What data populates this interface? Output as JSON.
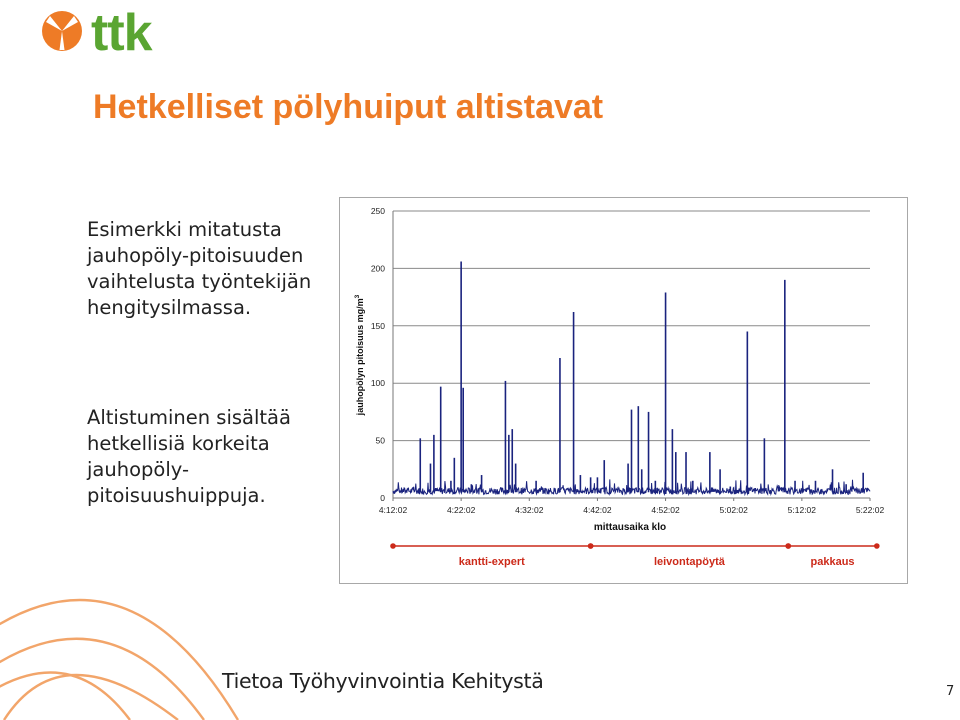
{
  "logo": {
    "text": "ttk",
    "mark_color": "#ee7b26",
    "text_color": "#5aa532"
  },
  "slide": {
    "title": "Hetkelliset pölyhuiput altistavat",
    "paragraph1": "Esimerkki mitatusta jauhopöly-pitoisuuden vaihtelusta työntekijän hengitysilmassa.",
    "paragraph2": "Altistuminen sisältää hetkellisiä korkeita jauhopöly-pitoisuushuippuja.",
    "footer": "Tietoa Työhyvinvointia Kehitystä",
    "page_number": "7"
  },
  "colors": {
    "title": "#ee7b26",
    "series": "#1a237e",
    "phase": "#cc2a1a",
    "deco": "#f2a56a"
  },
  "chart_data": {
    "type": "line",
    "xlabel": "mittausaika klo",
    "ylabel": "jauhopölyn pitoisuus mg/m",
    "ylabel_superscript": "3",
    "ylim": [
      0,
      250
    ],
    "yticks": [
      "0",
      "50",
      "100",
      "150",
      "200",
      "250"
    ],
    "xlim_minutes": [
      0,
      70
    ],
    "xtick_labels": [
      "4:12:02",
      "4:22:02",
      "4:32:02",
      "4:42:02",
      "4:52:02",
      "5:02:02",
      "5:12:02",
      "5:22:02"
    ],
    "grid": "horizontal",
    "baseline_mg_m3": 5,
    "peaks": [
      {
        "t": "4:16:02",
        "value": 52
      },
      {
        "t": "4:17:32",
        "value": 30
      },
      {
        "t": "4:18:02",
        "value": 55
      },
      {
        "t": "4:19:02",
        "value": 97
      },
      {
        "t": "4:20:32",
        "value": 15
      },
      {
        "t": "4:21:02",
        "value": 35
      },
      {
        "t": "4:22:02",
        "value": 206
      },
      {
        "t": "4:22:20",
        "value": 96
      },
      {
        "t": "4:23:32",
        "value": 12
      },
      {
        "t": "4:25:02",
        "value": 20
      },
      {
        "t": "4:28:32",
        "value": 102
      },
      {
        "t": "4:29:02",
        "value": 55
      },
      {
        "t": "4:29:32",
        "value": 60
      },
      {
        "t": "4:30:02",
        "value": 30
      },
      {
        "t": "4:33:02",
        "value": 15
      },
      {
        "t": "4:36:32",
        "value": 122
      },
      {
        "t": "4:38:32",
        "value": 162
      },
      {
        "t": "4:39:32",
        "value": 20
      },
      {
        "t": "4:41:02",
        "value": 18
      },
      {
        "t": "4:42:02",
        "value": 18
      },
      {
        "t": "4:43:02",
        "value": 33
      },
      {
        "t": "4:46:32",
        "value": 30
      },
      {
        "t": "4:47:02",
        "value": 77
      },
      {
        "t": "4:48:02",
        "value": 80
      },
      {
        "t": "4:48:32",
        "value": 25
      },
      {
        "t": "4:49:32",
        "value": 75
      },
      {
        "t": "4:50:32",
        "value": 15
      },
      {
        "t": "4:52:02",
        "value": 179
      },
      {
        "t": "4:53:02",
        "value": 60
      },
      {
        "t": "4:53:32",
        "value": 40
      },
      {
        "t": "4:55:02",
        "value": 40
      },
      {
        "t": "4:56:02",
        "value": 15
      },
      {
        "t": "4:58:32",
        "value": 40
      },
      {
        "t": "5:00:02",
        "value": 25
      },
      {
        "t": "5:01:32",
        "value": 10
      },
      {
        "t": "5:04:02",
        "value": 145
      },
      {
        "t": "5:06:32",
        "value": 52
      },
      {
        "t": "5:09:32",
        "value": 190
      },
      {
        "t": "5:11:02",
        "value": 15
      },
      {
        "t": "5:14:02",
        "value": 15
      },
      {
        "t": "5:16:32",
        "value": 25
      },
      {
        "t": "5:18:32",
        "value": 12
      },
      {
        "t": "5:21:02",
        "value": 22
      }
    ],
    "phases": [
      {
        "label": "kantti-expert",
        "start": "4:12:02",
        "end": "4:41:02"
      },
      {
        "label": "leivontapöytä",
        "start": "4:41:02",
        "end": "5:10:02"
      },
      {
        "label": "pakkaus",
        "start": "5:10:02",
        "end": "5:23:02"
      }
    ]
  }
}
